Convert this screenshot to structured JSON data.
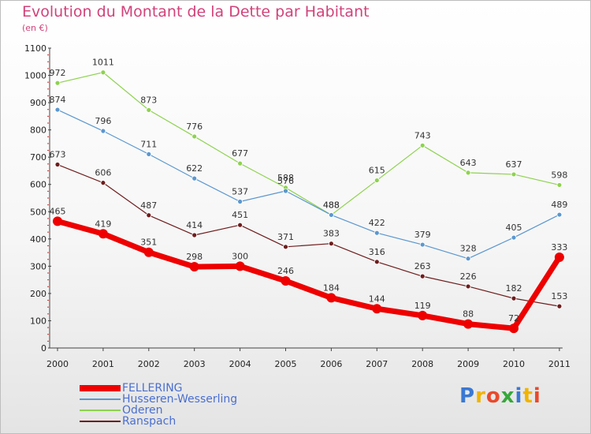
{
  "header": {
    "title": "Evolution du Montant de la Dette par Habitant",
    "subtitle": "(en €)"
  },
  "chart_data": {
    "type": "line",
    "x": [
      "2000",
      "2001",
      "2002",
      "2003",
      "2004",
      "2005",
      "2006",
      "2007",
      "2008",
      "2009",
      "2010",
      "2011"
    ],
    "ylim": [
      0,
      1100
    ],
    "yticks": [
      0,
      100,
      200,
      300,
      400,
      500,
      600,
      700,
      800,
      900,
      1000,
      1100
    ],
    "grid": false,
    "legend_position": "bottom-left",
    "series": [
      {
        "name": "FELLERING",
        "color": "#ee0000",
        "values": [
          465,
          419,
          351,
          298,
          300,
          246,
          184,
          144,
          119,
          88,
          72,
          333
        ],
        "labels": [
          "465",
          "419",
          "351",
          "298",
          "300",
          "246",
          "184",
          "144",
          "119",
          "88",
          "72",
          "333"
        ]
      },
      {
        "name": "Husseren-Wesserling",
        "color": "#5b97cf",
        "values": [
          874,
          796,
          711,
          622,
          537,
          576,
          488,
          422,
          379,
          328,
          405,
          489
        ],
        "labels": [
          "874",
          "796",
          "711",
          "622",
          "537",
          "576",
          "488",
          "422",
          "379",
          "328",
          "405",
          "489"
        ]
      },
      {
        "name": "Oderen",
        "color": "#8ed24f",
        "values": [
          972,
          1011,
          873,
          776,
          677,
          588,
          488,
          615,
          743,
          643,
          637,
          598
        ],
        "labels": [
          "972",
          "1011",
          "873",
          "776",
          "677",
          "588",
          "488",
          "615",
          "743",
          "643",
          "637",
          "598"
        ]
      },
      {
        "name": "Ranspach",
        "color": "#6e1c1c",
        "values": [
          673,
          606,
          487,
          414,
          451,
          371,
          383,
          316,
          263,
          226,
          182,
          153
        ],
        "labels": [
          "673",
          "606",
          "487",
          "414",
          "451",
          "371",
          "383",
          "316",
          "263",
          "226",
          "182",
          "153"
        ]
      }
    ]
  },
  "logo": {
    "text": "Proxiti",
    "colors": [
      "#3a78d4",
      "#f0b400",
      "#e84a2c",
      "#37a83a",
      "#3a78d4",
      "#f0b400",
      "#e84a2c"
    ]
  }
}
